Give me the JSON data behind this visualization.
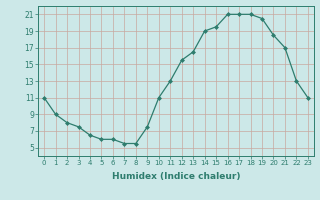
{
  "x": [
    0,
    1,
    2,
    3,
    4,
    5,
    6,
    7,
    8,
    9,
    10,
    11,
    12,
    13,
    14,
    15,
    16,
    17,
    18,
    19,
    20,
    21,
    22,
    23
  ],
  "y": [
    11,
    9,
    8,
    7.5,
    6.5,
    6,
    6,
    5.5,
    5.5,
    7.5,
    11,
    13,
    15.5,
    16.5,
    19,
    19.5,
    21,
    21,
    21,
    20.5,
    18.5,
    17,
    13,
    11
  ],
  "line_color": "#2e7d6e",
  "marker_color": "#2e7d6e",
  "bg_color": "#cce8e8",
  "grid_color": "#c8a8a0",
  "xlabel": "Humidex (Indice chaleur)",
  "xlim": [
    -0.5,
    23.5
  ],
  "ylim": [
    4,
    22
  ],
  "yticks": [
    5,
    7,
    9,
    11,
    13,
    15,
    17,
    19,
    21
  ],
  "xticks": [
    0,
    1,
    2,
    3,
    4,
    5,
    6,
    7,
    8,
    9,
    10,
    11,
    12,
    13,
    14,
    15,
    16,
    17,
    18,
    19,
    20,
    21,
    22,
    23
  ]
}
